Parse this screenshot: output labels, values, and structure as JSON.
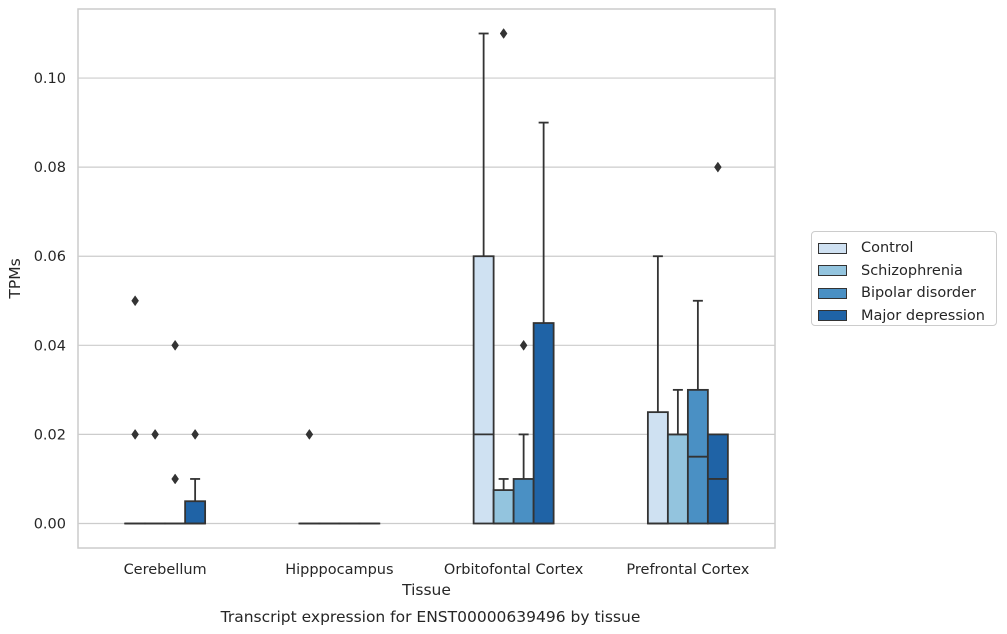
{
  "chart_data": {
    "type": "box",
    "caption": "Transcript expression for ENST00000639496 by tissue",
    "xlabel": "Tissue",
    "ylabel": "TPMs",
    "ylim": [
      -0.0055,
      0.1155
    ],
    "yticks": [
      "0.00",
      "0.02",
      "0.04",
      "0.06",
      "0.08",
      "0.10"
    ],
    "grid": true,
    "legend_position": "right",
    "categories": [
      "Cerebellum",
      "Hipppocampus",
      "Orbitofontal Cortex",
      "Prefrontal Cortex"
    ],
    "series": [
      {
        "name": "Control",
        "color": "#cfe1f2",
        "boxes": [
          {
            "q1": 0,
            "median": 0,
            "q3": 0,
            "whisker_low": 0,
            "whisker_high": 0,
            "outliers": [
              0.05,
              0.02
            ]
          },
          {
            "q1": 0,
            "median": 0,
            "q3": 0,
            "whisker_low": 0,
            "whisker_high": 0,
            "outliers": [
              0.02
            ]
          },
          {
            "q1": 0,
            "median": 0.02,
            "q3": 0.06,
            "whisker_low": 0,
            "whisker_high": 0.11,
            "outliers": []
          },
          {
            "q1": 0,
            "median": 0,
            "q3": 0.025,
            "whisker_low": 0,
            "whisker_high": 0.06,
            "outliers": []
          }
        ]
      },
      {
        "name": "Schizophrenia",
        "color": "#93c4de",
        "boxes": [
          {
            "q1": 0,
            "median": 0,
            "q3": 0,
            "whisker_low": 0,
            "whisker_high": 0,
            "outliers": [
              0.02
            ]
          },
          {
            "q1": 0,
            "median": 0,
            "q3": 0,
            "whisker_low": 0,
            "whisker_high": 0,
            "outliers": []
          },
          {
            "q1": 0,
            "median": 0,
            "q3": 0.0075,
            "whisker_low": 0,
            "whisker_high": 0.01,
            "outliers": [
              0.11
            ]
          },
          {
            "q1": 0,
            "median": 0.02,
            "q3": 0.02,
            "whisker_low": 0,
            "whisker_high": 0.03,
            "outliers": []
          }
        ]
      },
      {
        "name": "Bipolar disorder",
        "color": "#4a90c4",
        "boxes": [
          {
            "q1": 0,
            "median": 0,
            "q3": 0,
            "whisker_low": 0,
            "whisker_high": 0,
            "outliers": [
              0.04,
              0.01
            ]
          },
          {
            "q1": 0,
            "median": 0,
            "q3": 0,
            "whisker_low": 0,
            "whisker_high": 0,
            "outliers": []
          },
          {
            "q1": 0,
            "median": 0,
            "q3": 0.01,
            "whisker_low": 0,
            "whisker_high": 0.02,
            "outliers": [
              0.04
            ]
          },
          {
            "q1": 0,
            "median": 0.015,
            "q3": 0.03,
            "whisker_low": 0,
            "whisker_high": 0.05,
            "outliers": []
          }
        ]
      },
      {
        "name": "Major depression",
        "color": "#1f63a6",
        "boxes": [
          {
            "q1": 0,
            "median": 0,
            "q3": 0.005,
            "whisker_low": 0,
            "whisker_high": 0.01,
            "outliers": [
              0.02
            ]
          },
          {
            "q1": 0,
            "median": 0,
            "q3": 0,
            "whisker_low": 0,
            "whisker_high": 0,
            "outliers": []
          },
          {
            "q1": 0,
            "median": 0,
            "q3": 0.045,
            "whisker_low": 0,
            "whisker_high": 0.09,
            "outliers": []
          },
          {
            "q1": 0,
            "median": 0.01,
            "q3": 0.02,
            "whisker_low": 0,
            "whisker_high": 0.02,
            "outliers": [
              0.08
            ]
          }
        ]
      }
    ]
  }
}
